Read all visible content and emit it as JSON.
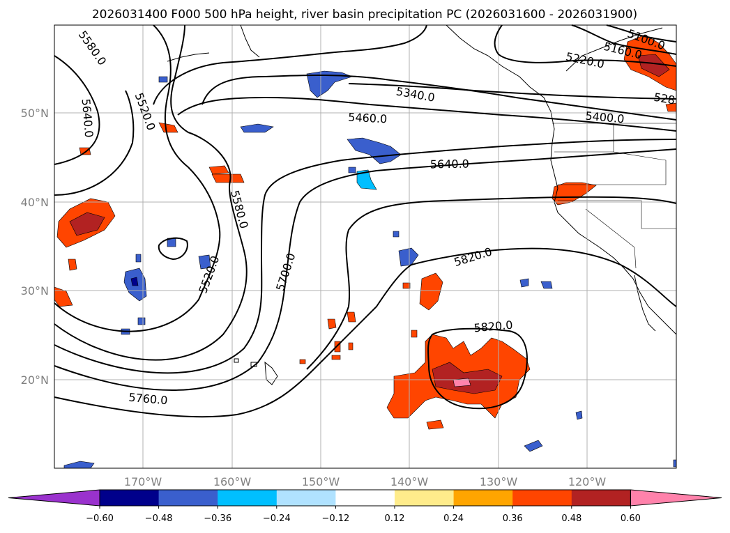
{
  "title": "2026031400 F000 500 hPa height, river basin precipitation PC (2026031600 - 2026031900)",
  "lat_labels": [
    "50°N",
    "40°N",
    "30°N",
    "20°N"
  ],
  "lon_labels": [
    "170°W",
    "160°W",
    "150°W",
    "140°W",
    "130°W",
    "120°W"
  ],
  "contour_labels": [
    "5580.0",
    "5640.0",
    "5520.0",
    "5580.0",
    "5520.0",
    "5700.0",
    "5760.0",
    "5340.0",
    "5460.0",
    "5640.0",
    "5820.0",
    "5820.0",
    "5220.0",
    "5160.0",
    "5100.0",
    "5400.0",
    "528"
  ],
  "colorbar": {
    "tick_labels": [
      "−0.60",
      "−0.48",
      "−0.36",
      "−0.24",
      "−0.12",
      "0.12",
      "0.24",
      "0.36",
      "0.48",
      "0.60"
    ],
    "colors": [
      "#9a32cd",
      "#00008b",
      "#3a5fcd",
      "#00bfff",
      "#b0e2ff",
      "#ffffff",
      "#ffec8b",
      "#ffa500",
      "#ff4500",
      "#b22222",
      "#ff82ab"
    ]
  }
}
